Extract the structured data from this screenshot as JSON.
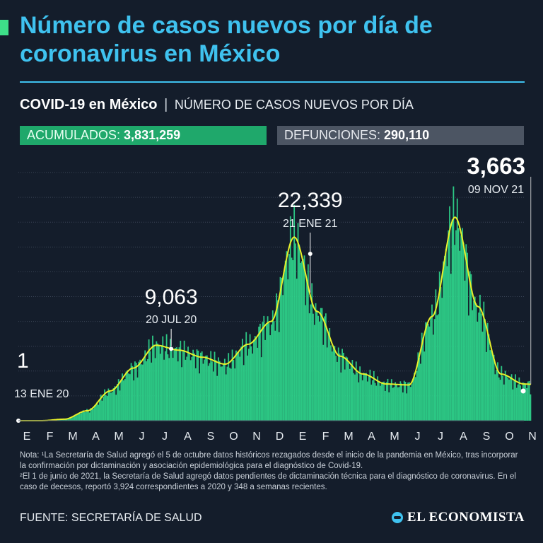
{
  "title": "Número de casos nuevos por día de coronavirus en México",
  "subtitle": {
    "bold": "COVID-19 en México",
    "separator": "|",
    "rest": "NÚMERO DE CASOS NUEVOS POR DÍA"
  },
  "stats": {
    "cases_label": "ACUMULADOS:",
    "cases_value": "3,831,259",
    "deaths_label": "DEFUNCIONES:",
    "deaths_value": "290,110"
  },
  "notes": {
    "line1": "Nota: ¹La Secretaría de Salud agregó el 5 de octubre datos históricos rezagados desde el inicio de la pandemia en México, tras incorporar la confirmación por dictaminación y asociación epidemiológica para el diagnóstico de Covid-19.",
    "line2": "²El 1 de junio de 2021, la Secretaría de Salud agregó datos pendientes de dictaminación técnica para el diagnóstico de coronavirus. En el caso de decesos, reportó 3,924 correspondientes a 2020 y 348 a semanas recientes."
  },
  "source": "FUENTE: SECRETARÍA DE SALUD",
  "logo": "EL ECONOMISTA",
  "colors": {
    "background": "#141d2b",
    "title": "#3fc2ef",
    "bars": "#2fd68c",
    "average_line": "#e8f02a",
    "cases_box": "#1fa86b",
    "deaths_box": "#4c5563"
  },
  "chart_data": {
    "type": "bar",
    "x_tick_labels": [
      "E",
      "F",
      "M",
      "A",
      "M",
      "J",
      "J",
      "A",
      "S",
      "O",
      "N",
      "D",
      "E",
      "F",
      "M",
      "A",
      "M",
      "J",
      "J",
      "A",
      "S",
      "O",
      "N"
    ],
    "y_grid": true,
    "annotations": [
      {
        "value": "1",
        "date": "13 ENE 20",
        "month_index": 0.4
      },
      {
        "value": "9,063",
        "date": "20 JUL 20",
        "month_index": 6.65
      },
      {
        "value": "22,339",
        "date": "21 ENE 21",
        "month_index": 12.7
      },
      {
        "value": "3,663",
        "date": "09 NOV 21",
        "month_index": 22.3
      }
    ],
    "series": [
      {
        "name": "",
        "description_of_points": "approximate smoothed daily new cases at month starts",
        "x_month_index": [
          0,
          1,
          2,
          3,
          4,
          5,
          6,
          7,
          8,
          9,
          10,
          11,
          12,
          13,
          14,
          15,
          16,
          17,
          18,
          19,
          20,
          21,
          22,
          22.3
        ],
        "values": [
          0,
          0,
          150,
          1000,
          3000,
          5300,
          7600,
          7100,
          6400,
          5700,
          7700,
          10000,
          18500,
          11000,
          6500,
          4700,
          3700,
          3600,
          10500,
          20500,
          11500,
          4700,
          3700,
          3663
        ]
      }
    ],
    "ylim": [
      0,
      26000
    ]
  }
}
